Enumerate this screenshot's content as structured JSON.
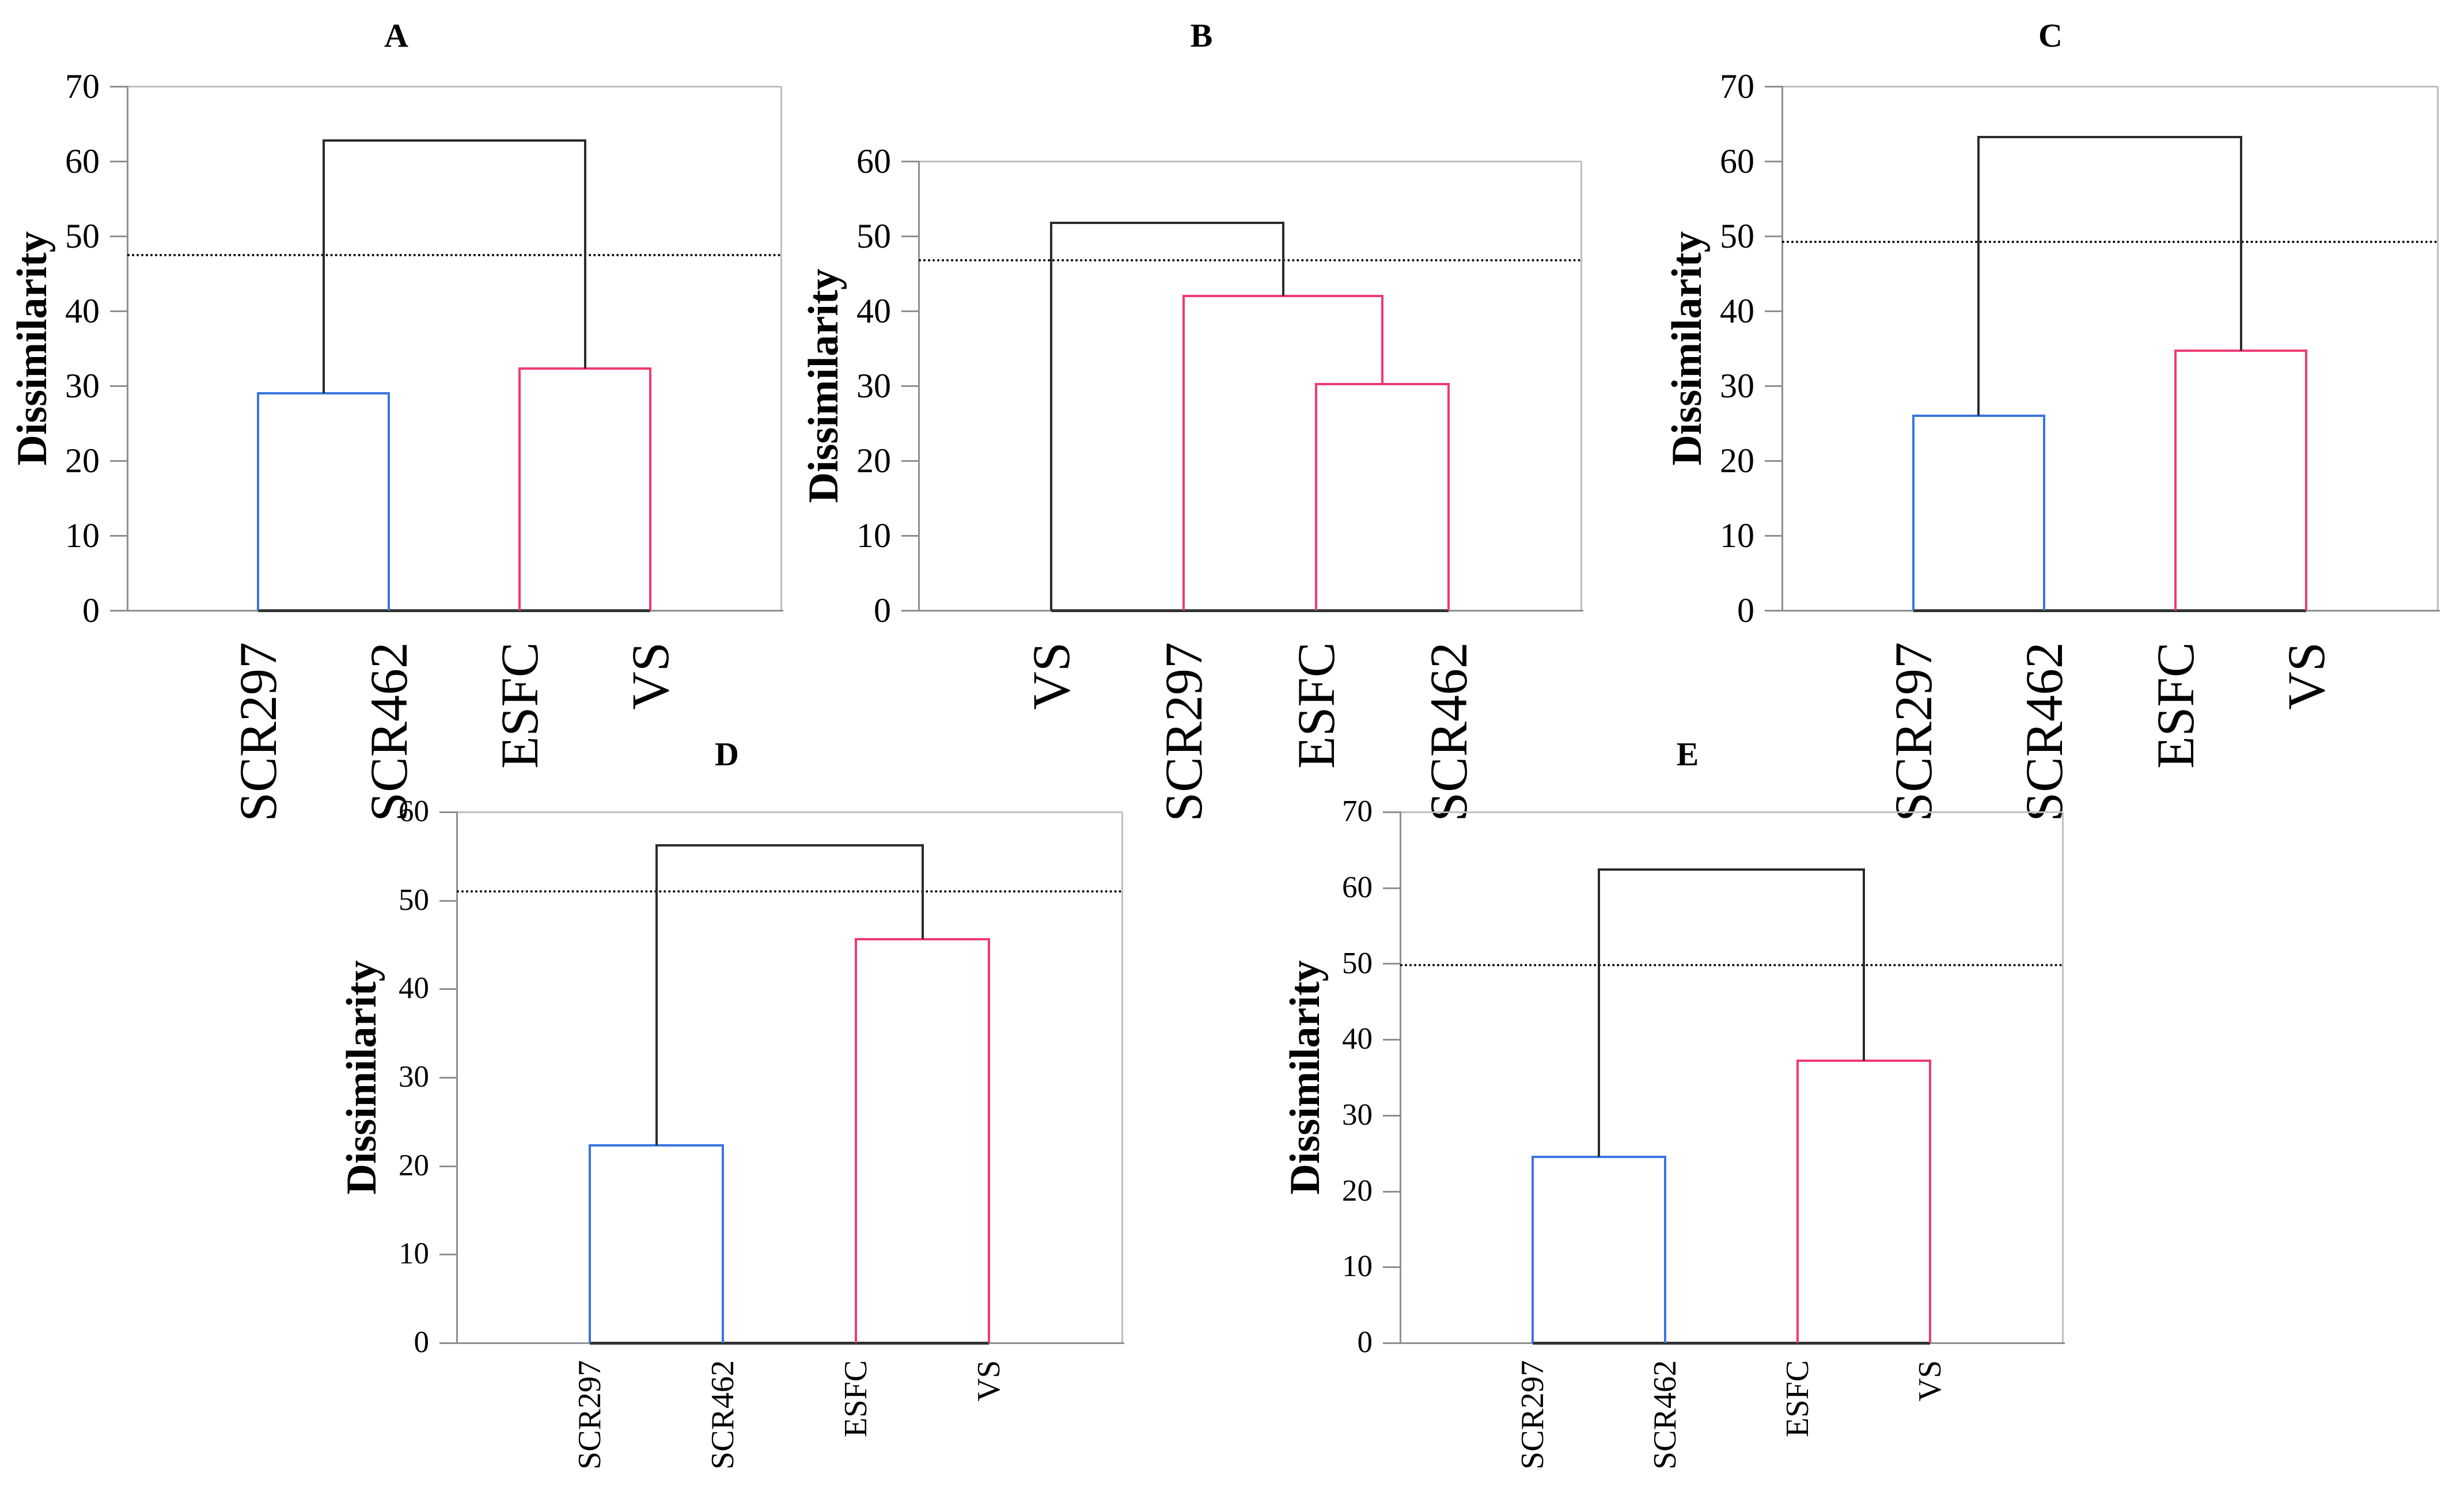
{
  "figure": {
    "background": "#ffffff",
    "description": "Five hierarchical clustering dendrograms (panels A-E) comparing samples by dissimilarity"
  },
  "colors": {
    "cluster_blue": "#3a75e0",
    "cluster_pink": "#ef3a72",
    "link_black": "#2b2b2b",
    "axis_gray": "#8f8f8f",
    "border_gray": "#bfbfbf",
    "baseline_dark": "#333333",
    "cutline_black": "#000000",
    "text_black": "#000000"
  },
  "chart_data": [
    {
      "panel": "A",
      "type": "dendrogram",
      "title": "A",
      "ylabel": "Dissimilarity",
      "ylim": [
        0,
        70
      ],
      "ytick_step": 10,
      "yticks": [
        0,
        10,
        20,
        30,
        40,
        50,
        60,
        70
      ],
      "grid": false,
      "legend": false,
      "leaves": [
        "SCR297",
        "SCR462",
        "ESFC",
        "VS"
      ],
      "merges": [
        {
          "children": [
            0,
            1
          ],
          "height": 29.0,
          "color": "blue"
        },
        {
          "children": [
            2,
            3
          ],
          "height": 32.3,
          "color": "pink"
        },
        {
          "children": [
            "m0",
            "m1"
          ],
          "height": 62.8,
          "color": "black"
        }
      ],
      "cutline": 47.5
    },
    {
      "panel": "B",
      "type": "dendrogram",
      "title": "B",
      "ylabel": "Dissimilarity",
      "ylim": [
        0,
        60
      ],
      "ytick_step": 10,
      "yticks": [
        0,
        10,
        20,
        30,
        40,
        50,
        60
      ],
      "grid": false,
      "legend": false,
      "leaves": [
        "VS",
        "SCR297",
        "ESFC",
        "SCR462"
      ],
      "merges": [
        {
          "children": [
            2,
            3
          ],
          "height": 30.2,
          "color": "pink"
        },
        {
          "children": [
            1,
            "m0"
          ],
          "height": 42.0,
          "color": "pink"
        },
        {
          "children": [
            0,
            "m1"
          ],
          "height": 51.8,
          "color": "black"
        }
      ],
      "cutline": 46.8
    },
    {
      "panel": "C",
      "type": "dendrogram",
      "title": "C",
      "ylabel": "Dissimilarity",
      "ylim": [
        0,
        70
      ],
      "ytick_step": 10,
      "yticks": [
        0,
        10,
        20,
        30,
        40,
        50,
        60,
        70
      ],
      "grid": false,
      "legend": false,
      "leaves": [
        "SCR297",
        "SCR462",
        "ESFC",
        "VS"
      ],
      "merges": [
        {
          "children": [
            0,
            1
          ],
          "height": 26.0,
          "color": "blue"
        },
        {
          "children": [
            2,
            3
          ],
          "height": 34.7,
          "color": "pink"
        },
        {
          "children": [
            "m0",
            "m1"
          ],
          "height": 63.2,
          "color": "black"
        }
      ],
      "cutline": 49.2
    },
    {
      "panel": "D",
      "type": "dendrogram",
      "title": "D",
      "ylabel": "Dissimilarity",
      "ylim": [
        0,
        60
      ],
      "ytick_step": 10,
      "yticks": [
        0,
        10,
        20,
        30,
        40,
        50,
        60
      ],
      "grid": false,
      "legend": false,
      "leaves": [
        "SCR297",
        "SCR462",
        "ESFC",
        "VS"
      ],
      "merges": [
        {
          "children": [
            0,
            1
          ],
          "height": 22.3,
          "color": "blue"
        },
        {
          "children": [
            2,
            3
          ],
          "height": 45.6,
          "color": "pink"
        },
        {
          "children": [
            "m0",
            "m1"
          ],
          "height": 56.2,
          "color": "black"
        }
      ],
      "cutline": 51.0
    },
    {
      "panel": "E",
      "type": "dendrogram",
      "title": "E",
      "ylabel": "Dissimilarity",
      "ylim": [
        0,
        70
      ],
      "ytick_step": 10,
      "yticks": [
        0,
        10,
        20,
        30,
        40,
        50,
        60,
        70
      ],
      "grid": false,
      "legend": false,
      "leaves": [
        "SCR297",
        "SCR462",
        "ESFC",
        "VS"
      ],
      "merges": [
        {
          "children": [
            0,
            1
          ],
          "height": 24.5,
          "color": "blue"
        },
        {
          "children": [
            2,
            3
          ],
          "height": 37.2,
          "color": "pink"
        },
        {
          "children": [
            "m0",
            "m1"
          ],
          "height": 62.4,
          "color": "black"
        }
      ],
      "cutline": 49.8
    }
  ]
}
